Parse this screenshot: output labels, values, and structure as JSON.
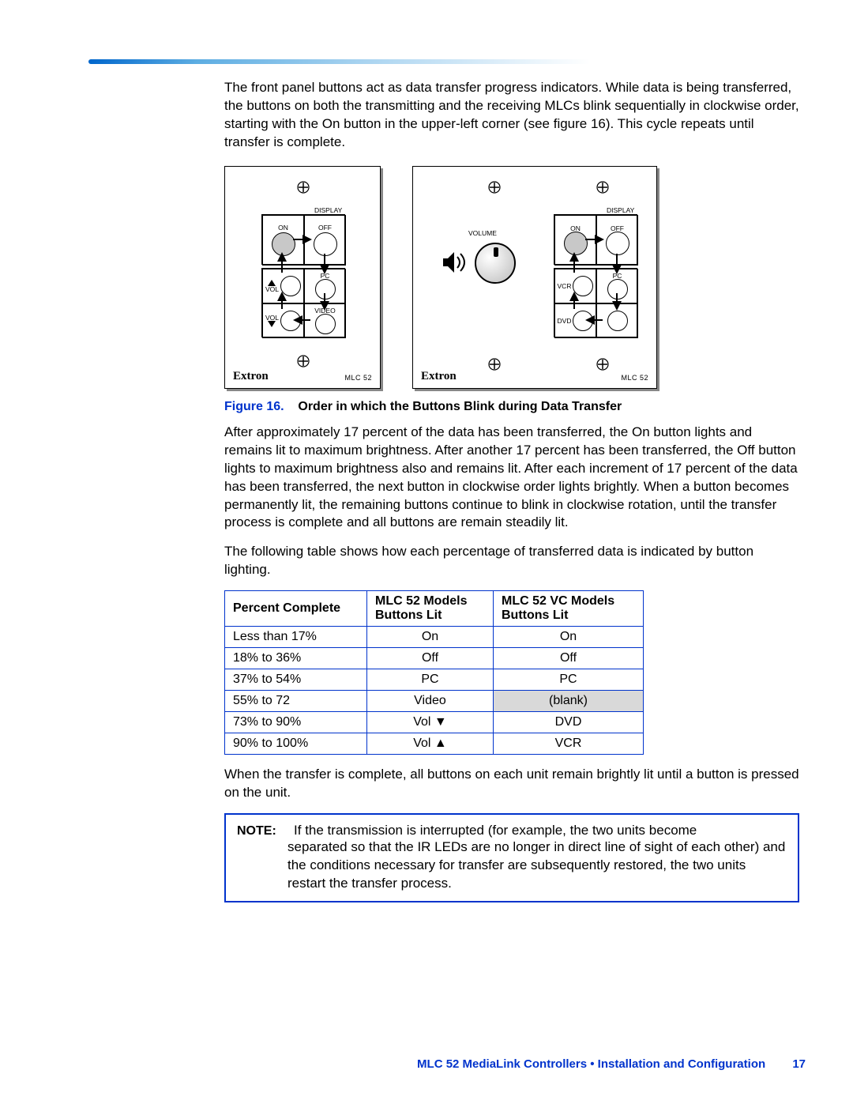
{
  "paragraphs": {
    "p1": "The front panel buttons act as data transfer progress indicators. While data is being transferred, the buttons on both the transmitting and the receiving MLCs blink sequentially in clockwise order, starting with the On button in the upper-left corner (see figure 16). This cycle repeats until transfer is complete.",
    "p2": "After approximately 17 percent of the data has been transferred, the On button lights and remains lit to maximum brightness. After another 17 percent has been transferred, the Off button lights to maximum brightness also and remains lit. After each increment of 17 percent of the data has been transferred, the next button in clockwise order lights brightly. When a button becomes permanently lit, the remaining buttons continue to blink in clockwise rotation, until the transfer process is complete and all buttons are remain steadily lit.",
    "p3": "The following table shows how each percentage of transferred data is indicated by button lighting.",
    "p4": "When the transfer is complete, all buttons on each unit remain brightly lit until a button is pressed on the unit."
  },
  "figure": {
    "number": "Figure 16.",
    "title": "Order in which the Buttons Blink during Data Transfer",
    "brand": "Extron",
    "model": "MLC 52",
    "panelA_labels": {
      "display": "DISPLAY",
      "on": "ON",
      "off": "OFF",
      "vol_up": "VOL",
      "vol_dn": "VOL",
      "pc": "PC",
      "video": "VIDEO"
    },
    "panelB_labels": {
      "display": "DISPLAY",
      "volume": "VOLUME",
      "on": "ON",
      "off": "OFF",
      "vcr": "VCR",
      "dvd": "DVD",
      "pc": "PC"
    }
  },
  "table": {
    "headers": {
      "c1": "Percent Complete",
      "c2a": "MLC 52 Models",
      "c2b": "Buttons Lit",
      "c3a": "MLC 52 VC Models",
      "c3b": "Buttons Lit"
    },
    "rows": [
      {
        "pct": "Less than 17%",
        "m52": "On",
        "vc": "On"
      },
      {
        "pct": "18% to 36%",
        "m52": "Off",
        "vc": "Off"
      },
      {
        "pct": "37% to 54%",
        "m52": "PC",
        "vc": "PC"
      },
      {
        "pct": "55% to 72",
        "m52": "Video",
        "vc": "(blank)",
        "vc_shade": true
      },
      {
        "pct": "73% to 90%",
        "m52": "Vol ▼",
        "vc": "DVD"
      },
      {
        "pct": "90% to 100%",
        "m52": "Vol ▲",
        "vc": "VCR"
      }
    ]
  },
  "note": {
    "label": "NOTE:",
    "text_inline": "If the transmission is interrupted (for example, the two units become",
    "text_body": "separated so that the IR LEDs are no longer in direct line of sight of each other) and the conditions necessary for transfer are subsequently restored, the two units restart the transfer process."
  },
  "footer": {
    "text": "MLC 52 MediaLink Controllers • Installation and Configuration",
    "page": "17"
  },
  "colors": {
    "accent": "#0033cc",
    "rule_start": "#0066cc"
  }
}
